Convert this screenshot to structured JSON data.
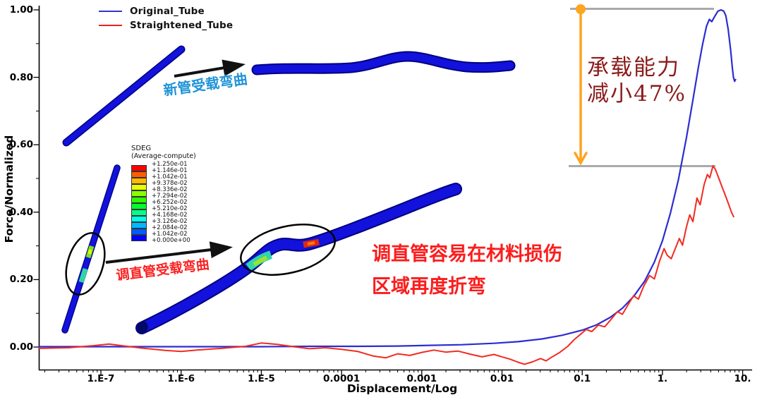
{
  "legend": {
    "items": [
      {
        "label": "Original_Tube",
        "color": "#3333cc"
      },
      {
        "label": "Straightened_Tube",
        "color": "#ee2222"
      }
    ]
  },
  "sdeg": {
    "title": "SDEG",
    "subtitle": "(Average-compute)",
    "labels": [
      "+1.250e-01",
      "+1.146e-01",
      "+1.042e-01",
      "+9.378e-02",
      "+8.336e-02",
      "+7.294e-02",
      "+6.252e-02",
      "+5.210e-02",
      "+4.168e-02",
      "+3.126e-02",
      "+2.084e-02",
      "+1.042e-02",
      "+0.000e+00"
    ],
    "colors": [
      "#ff0000",
      "#ff5d00",
      "#ffb900",
      "#e8ff00",
      "#8bff00",
      "#2eff00",
      "#00ff2e",
      "#00ff8b",
      "#00ffe8",
      "#00b9ff",
      "#005dff",
      "#0000ff"
    ]
  },
  "annotations": {
    "new_tube_bending": "新管受载弯曲",
    "straightened_bending": "调直管受载弯曲",
    "rebend_line1": "调直管容易在材料损伤",
    "rebend_line2": "区域再度折弯",
    "capacity_line1": "承载能力",
    "capacity_line2": "减小47%"
  },
  "axes": {
    "x_label": "Displacement/Log",
    "y_label": "Force/Normalized",
    "x_ticks": [
      {
        "label": "1.E-7",
        "log": -7
      },
      {
        "label": "1.E-6",
        "log": -6
      },
      {
        "label": "1.E-5",
        "log": -5
      },
      {
        "label": "0.0001",
        "log": -4
      },
      {
        "label": "0.001",
        "log": -3
      },
      {
        "label": "0.01",
        "log": -2
      },
      {
        "label": "0.1",
        "log": -1
      },
      {
        "label": "1.",
        "log": 0
      },
      {
        "label": "10.",
        "log": 1
      }
    ],
    "y_ticks": [
      {
        "label": "0.00",
        "value": 0.0
      },
      {
        "label": "0.20",
        "value": 0.2
      },
      {
        "label": "0.40",
        "value": 0.4
      },
      {
        "label": "0.60",
        "value": 0.6
      },
      {
        "label": "0.80",
        "value": 0.8
      },
      {
        "label": "1.00",
        "value": 1.0
      }
    ]
  },
  "chart_data": {
    "type": "line",
    "title": "",
    "xlabel": "Displacement/Log",
    "ylabel": "Force/Normalized",
    "x_scale": "log",
    "xlim_log10": [
      -7.78,
      1.12
    ],
    "ylim": [
      -0.06,
      1.02
    ],
    "grid": false,
    "legend_position": "top-left",
    "annotation_levels": {
      "upper": 1.0,
      "lower": 0.54,
      "reduction_percent": 47
    },
    "series": [
      {
        "name": "Original_Tube",
        "color": "#2c2cd2",
        "points_log10x_y": [
          [
            -7.78,
            0.001
          ],
          [
            -7.2,
            0.001
          ],
          [
            -6.5,
            0.001
          ],
          [
            -5.8,
            0.001
          ],
          [
            -5.0,
            0.001
          ],
          [
            -4.4,
            0.002
          ],
          [
            -3.8,
            0.002
          ],
          [
            -3.3,
            0.003
          ],
          [
            -2.9,
            0.005
          ],
          [
            -2.5,
            0.007
          ],
          [
            -2.1,
            0.011
          ],
          [
            -1.8,
            0.016
          ],
          [
            -1.5,
            0.024
          ],
          [
            -1.25,
            0.035
          ],
          [
            -1.0,
            0.05
          ],
          [
            -0.82,
            0.066
          ],
          [
            -0.65,
            0.088
          ],
          [
            -0.5,
            0.115
          ],
          [
            -0.36,
            0.15
          ],
          [
            -0.22,
            0.196
          ],
          [
            -0.1,
            0.252
          ],
          [
            0.0,
            0.315
          ],
          [
            0.1,
            0.398
          ],
          [
            0.2,
            0.497
          ],
          [
            0.3,
            0.622
          ],
          [
            0.38,
            0.733
          ],
          [
            0.45,
            0.833
          ],
          [
            0.5,
            0.898
          ],
          [
            0.55,
            0.952
          ],
          [
            0.585,
            0.972
          ],
          [
            0.615,
            0.965
          ],
          [
            0.65,
            0.98
          ],
          [
            0.69,
            0.996
          ],
          [
            0.73,
            1.0
          ],
          [
            0.765,
            0.996
          ],
          [
            0.79,
            0.983
          ],
          [
            0.82,
            0.942
          ],
          [
            0.85,
            0.882
          ],
          [
            0.87,
            0.832
          ],
          [
            0.885,
            0.8
          ],
          [
            0.9,
            0.788
          ],
          [
            0.915,
            0.795
          ]
        ]
      },
      {
        "name": "Straightened_Tube",
        "color": "#f22b20",
        "points_log10x_y": [
          [
            -7.78,
            -0.004
          ],
          [
            -7.4,
            -0.002
          ],
          [
            -7.1,
            0.004
          ],
          [
            -6.9,
            0.009
          ],
          [
            -6.7,
            0.003
          ],
          [
            -6.5,
            -0.003
          ],
          [
            -6.2,
            -0.01
          ],
          [
            -6.0,
            -0.013
          ],
          [
            -5.8,
            -0.009
          ],
          [
            -5.5,
            -0.004
          ],
          [
            -5.2,
            0.002
          ],
          [
            -5.0,
            0.012
          ],
          [
            -4.8,
            0.008
          ],
          [
            -4.6,
            0.001
          ],
          [
            -4.4,
            -0.005
          ],
          [
            -4.2,
            -0.002
          ],
          [
            -4.0,
            -0.007
          ],
          [
            -3.8,
            -0.013
          ],
          [
            -3.6,
            -0.027
          ],
          [
            -3.45,
            -0.032
          ],
          [
            -3.3,
            -0.02
          ],
          [
            -3.15,
            -0.025
          ],
          [
            -3.0,
            -0.016
          ],
          [
            -2.85,
            -0.009
          ],
          [
            -2.7,
            -0.015
          ],
          [
            -2.55,
            -0.012
          ],
          [
            -2.4,
            -0.021
          ],
          [
            -2.25,
            -0.029
          ],
          [
            -2.1,
            -0.022
          ],
          [
            -2.0,
            -0.029
          ],
          [
            -1.9,
            -0.036
          ],
          [
            -1.8,
            -0.045
          ],
          [
            -1.72,
            -0.051
          ],
          [
            -1.62,
            -0.044
          ],
          [
            -1.52,
            -0.034
          ],
          [
            -1.45,
            -0.041
          ],
          [
            -1.38,
            -0.03
          ],
          [
            -1.28,
            -0.016
          ],
          [
            -1.18,
            0.002
          ],
          [
            -1.1,
            0.022
          ],
          [
            -1.02,
            0.038
          ],
          [
            -0.95,
            0.052
          ],
          [
            -0.88,
            0.046
          ],
          [
            -0.8,
            0.065
          ],
          [
            -0.72,
            0.06
          ],
          [
            -0.64,
            0.082
          ],
          [
            -0.56,
            0.105
          ],
          [
            -0.5,
            0.097
          ],
          [
            -0.43,
            0.125
          ],
          [
            -0.36,
            0.152
          ],
          [
            -0.3,
            0.142
          ],
          [
            -0.23,
            0.182
          ],
          [
            -0.16,
            0.212
          ],
          [
            -0.1,
            0.202
          ],
          [
            -0.04,
            0.252
          ],
          [
            0.02,
            0.292
          ],
          [
            0.06,
            0.272
          ],
          [
            0.11,
            0.262
          ],
          [
            0.16,
            0.292
          ],
          [
            0.21,
            0.322
          ],
          [
            0.25,
            0.302
          ],
          [
            0.3,
            0.357
          ],
          [
            0.34,
            0.392
          ],
          [
            0.38,
            0.372
          ],
          [
            0.43,
            0.442
          ],
          [
            0.47,
            0.422
          ],
          [
            0.52,
            0.482
          ],
          [
            0.56,
            0.512
          ],
          [
            0.59,
            0.502
          ],
          [
            0.63,
            0.537
          ],
          [
            0.66,
            0.527
          ],
          [
            0.7,
            0.502
          ],
          [
            0.74,
            0.477
          ],
          [
            0.78,
            0.452
          ],
          [
            0.82,
            0.427
          ],
          [
            0.86,
            0.4
          ],
          [
            0.89,
            0.385
          ]
        ]
      }
    ]
  },
  "colors": {
    "tube_blue": "#1212dc",
    "tube_outline": "#000080",
    "curve_blue": "#2c2cd2",
    "curve_red": "#f22b20",
    "annotation_orange": "#ffa41e",
    "annotation_gray": "#aaaaaa",
    "text_cyan_blue": "#1f93d8",
    "text_red": "#fb1d1d",
    "text_dark_red": "#8b1c1c"
  }
}
